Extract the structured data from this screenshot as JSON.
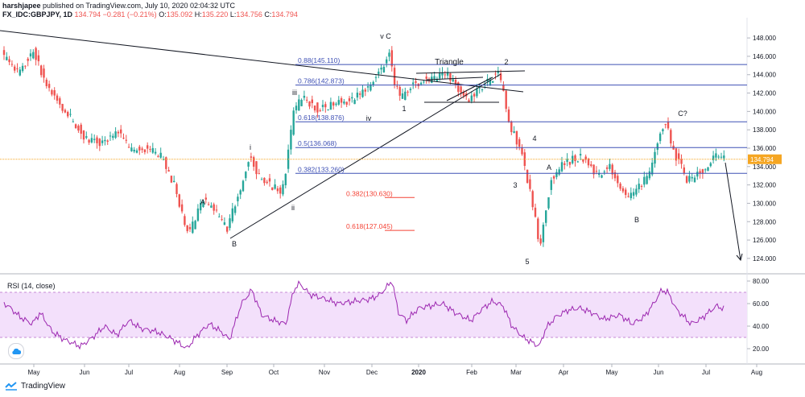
{
  "header": {
    "publisher": "harshjapee",
    "published_text": "published on TradingView.com, July 10, 2020 02:04:32 UTC",
    "symbol": "FX_IDC:GBPJPY, 1D",
    "last": "134.794",
    "change": "−0.281 (−0.21%)",
    "o_label": "O:",
    "o_val": "135.092",
    "h_label": "H:",
    "h_val": "135.220",
    "l_label": "L:",
    "l_val": "134.756",
    "c_label": "C:",
    "c_val": "134.794"
  },
  "footer": {
    "brand": "TradingView"
  },
  "rsi": {
    "title": "RSI (14, close)"
  },
  "colors": {
    "up": "#26a69a",
    "down": "#ef5350",
    "fib_blue": "#3f51b5",
    "fib_red": "#f44336",
    "rsi_line": "#9c27b0",
    "rsi_band": "#f3e0fb",
    "price_line": "#f5a623",
    "price_tag": "#f5a623"
  },
  "chart_data": [
    {
      "type": "candlestick",
      "title": "FX_IDC:GBPJPY, 1D",
      "x_ticks": [
        "May",
        "Jun",
        "Jul",
        "Aug",
        "Sep",
        "Oct",
        "Nov",
        "Dec",
        "2020",
        "Feb",
        "Mar",
        "Apr",
        "May",
        "Jun",
        "Jul",
        "Aug"
      ],
      "ylim": [
        122.5,
        149.5
      ],
      "y_ticks": [
        "124.000",
        "126.000",
        "128.000",
        "130.000",
        "132.000",
        "134.000",
        "136.000",
        "138.000",
        "140.000",
        "142.000",
        "144.000",
        "146.000",
        "148.000"
      ],
      "last_price": "134.794",
      "anchors_comment_free": true,
      "price_path": [
        [
          0,
          146.8
        ],
        [
          10,
          145.8
        ],
        [
          25,
          144.2
        ],
        [
          45,
          146.5
        ],
        [
          60,
          143.0
        ],
        [
          85,
          140.0
        ],
        [
          110,
          137.0
        ],
        [
          130,
          136.5
        ],
        [
          150,
          137.8
        ],
        [
          165,
          135.8
        ],
        [
          185,
          136.0
        ],
        [
          205,
          135.0
        ],
        [
          222,
          131.5
        ],
        [
          232,
          127.8
        ],
        [
          240,
          127.0
        ],
        [
          255,
          130.5
        ],
        [
          268,
          129.5
        ],
        [
          285,
          127.2
        ],
        [
          300,
          131.0
        ],
        [
          313,
          135.2
        ],
        [
          325,
          133.0
        ],
        [
          340,
          132.0
        ],
        [
          353,
          131.0
        ],
        [
          360,
          134.5
        ],
        [
          368,
          140.0
        ],
        [
          378,
          141.5
        ],
        [
          400,
          140.2
        ],
        [
          420,
          141.0
        ],
        [
          440,
          141.2
        ],
        [
          460,
          142.5
        ],
        [
          470,
          143.8
        ],
        [
          480,
          145.0
        ],
        [
          488,
          146.5
        ],
        [
          492,
          143.0
        ],
        [
          502,
          141.5
        ],
        [
          515,
          142.8
        ],
        [
          528,
          143.4
        ],
        [
          545,
          143.6
        ],
        [
          560,
          144.0
        ],
        [
          572,
          142.5
        ],
        [
          586,
          141.2
        ],
        [
          600,
          142.5
        ],
        [
          612,
          143.5
        ],
        [
          622,
          144.2
        ],
        [
          628,
          142.5
        ],
        [
          636,
          138.5
        ],
        [
          650,
          136.0
        ],
        [
          660,
          132.0
        ],
        [
          668,
          128.5
        ],
        [
          674,
          124.8
        ],
        [
          680,
          129.0
        ],
        [
          688,
          132.5
        ],
        [
          700,
          134.0
        ],
        [
          715,
          134.8
        ],
        [
          730,
          135.0
        ],
        [
          745,
          133.0
        ],
        [
          760,
          134.0
        ],
        [
          772,
          132.0
        ],
        [
          785,
          130.5
        ],
        [
          800,
          132.0
        ],
        [
          812,
          133.5
        ],
        [
          822,
          137.5
        ],
        [
          830,
          139.0
        ],
        [
          840,
          135.5
        ],
        [
          850,
          134.0
        ],
        [
          856,
          132.5
        ],
        [
          866,
          132.8
        ],
        [
          875,
          133.5
        ],
        [
          885,
          134.5
        ],
        [
          895,
          135.3
        ],
        [
          900,
          134.8
        ]
      ],
      "price_levels": [
        {
          "label": "0.88(145.110)",
          "value": 145.11,
          "color": "blue"
        },
        {
          "label": "0.786(142.873)",
          "value": 142.873,
          "color": "blue"
        },
        {
          "label": "0.618(138.876)",
          "value": 138.876,
          "color": "blue"
        },
        {
          "label": "0.5(136.068)",
          "value": 136.068,
          "color": "blue"
        },
        {
          "label": "0.382(133.260)",
          "value": 133.26,
          "color": "blue"
        },
        {
          "label": "0.382(130.630)",
          "value": 130.63,
          "color": "red"
        },
        {
          "label": "0.618(127.045)",
          "value": 127.045,
          "color": "red"
        }
      ],
      "wave_labels": [
        "v C",
        "Triangle",
        "2",
        "iii",
        "iv",
        "1",
        "i",
        "A",
        "B",
        "ii",
        "4",
        "3",
        "A",
        "5",
        "C?",
        "B"
      ]
    },
    {
      "type": "line",
      "title": "RSI (14, close)",
      "ylim": [
        10,
        85
      ],
      "y_ticks": [
        "20.00",
        "40.00",
        "60.00",
        "80.00"
      ],
      "band": [
        30,
        70
      ],
      "rsi_path": [
        [
          0,
          62
        ],
        [
          10,
          58
        ],
        [
          25,
          48
        ],
        [
          40,
          42
        ],
        [
          50,
          52
        ],
        [
          65,
          35
        ],
        [
          80,
          28
        ],
        [
          100,
          22
        ],
        [
          115,
          30
        ],
        [
          130,
          40
        ],
        [
          145,
          32
        ],
        [
          160,
          45
        ],
        [
          175,
          38
        ],
        [
          195,
          35
        ],
        [
          210,
          30
        ],
        [
          222,
          25
        ],
        [
          232,
          20
        ],
        [
          245,
          32
        ],
        [
          260,
          42
        ],
        [
          275,
          35
        ],
        [
          285,
          28
        ],
        [
          300,
          60
        ],
        [
          313,
          72
        ],
        [
          325,
          50
        ],
        [
          340,
          45
        ],
        [
          355,
          42
        ],
        [
          365,
          72
        ],
        [
          372,
          78
        ],
        [
          385,
          68
        ],
        [
          400,
          65
        ],
        [
          420,
          60
        ],
        [
          440,
          62
        ],
        [
          460,
          64
        ],
        [
          472,
          68
        ],
        [
          482,
          76
        ],
        [
          487,
          80
        ],
        [
          495,
          52
        ],
        [
          505,
          45
        ],
        [
          520,
          56
        ],
        [
          535,
          58
        ],
        [
          550,
          60
        ],
        [
          565,
          52
        ],
        [
          585,
          45
        ],
        [
          600,
          56
        ],
        [
          612,
          62
        ],
        [
          625,
          58
        ],
        [
          636,
          40
        ],
        [
          650,
          30
        ],
        [
          660,
          26
        ],
        [
          670,
          22
        ],
        [
          678,
          38
        ],
        [
          690,
          48
        ],
        [
          705,
          54
        ],
        [
          720,
          56
        ],
        [
          735,
          52
        ],
        [
          750,
          46
        ],
        [
          770,
          50
        ],
        [
          785,
          42
        ],
        [
          800,
          48
        ],
        [
          812,
          60
        ],
        [
          822,
          72
        ],
        [
          830,
          70
        ],
        [
          840,
          55
        ],
        [
          850,
          48
        ],
        [
          858,
          42
        ],
        [
          870,
          46
        ],
        [
          880,
          52
        ],
        [
          890,
          58
        ],
        [
          900,
          55
        ]
      ]
    }
  ]
}
